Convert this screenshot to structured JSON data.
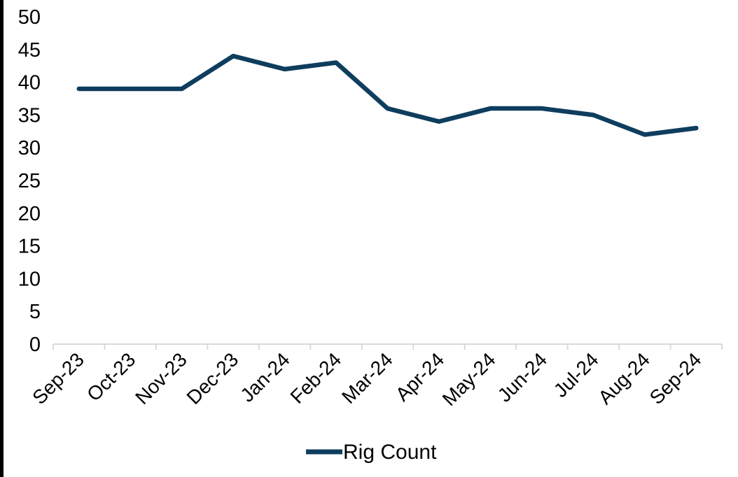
{
  "chart_data": {
    "type": "line",
    "title": "",
    "xlabel": "",
    "ylabel": "",
    "categories": [
      "Sep-23",
      "Oct-23",
      "Nov-23",
      "Dec-23",
      "Jan-24",
      "Feb-24",
      "Mar-24",
      "Apr-24",
      "May-24",
      "Jun-24",
      "Jul-24",
      "Aug-24",
      "Sep-24"
    ],
    "series": [
      {
        "name": "Rig Count",
        "values": [
          39,
          39,
          39,
          44,
          42,
          43,
          36,
          34,
          36,
          36,
          35,
          32,
          33
        ],
        "color": "#0E3D5E"
      }
    ],
    "ylim": [
      0,
      50
    ],
    "yticks": [
      0,
      5,
      10,
      15,
      20,
      25,
      30,
      35,
      40,
      45,
      50
    ],
    "grid": false,
    "legend_position": "bottom",
    "x_label_rotation_deg": 45
  },
  "legend": {
    "label": "Rig Count"
  },
  "colors": {
    "line": "#0E3D5E",
    "axis": "#D9D9D9",
    "text": "#000000",
    "background": "#FFFFFF",
    "frame_border": "#000000"
  }
}
